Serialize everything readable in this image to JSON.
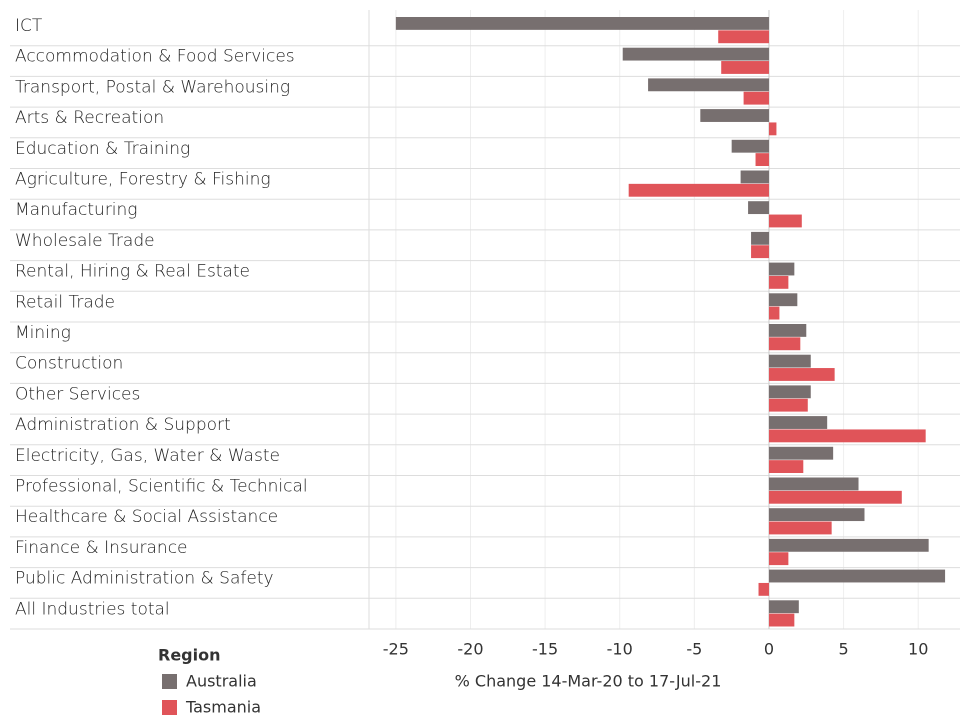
{
  "chart_data": {
    "type": "bar",
    "orientation": "horizontal",
    "x_label": "% Change 14-Mar-20 to 17-Jul-21",
    "legend_title": "Region",
    "categories": [
      "ICT",
      "Accommodation & Food Services",
      "Transport, Postal & Warehousing",
      "Arts & Recreation",
      "Education & Training",
      "Agriculture, Forestry & Fishing",
      "Manufacturing",
      "Wholesale Trade",
      "Rental, Hiring & Real Estate",
      "Retail Trade",
      "Mining",
      "Construction",
      "Other Services",
      "Administration & Support",
      "Electricity, Gas, Water & Waste",
      "Professional, Scientific & Technical",
      "Healthcare & Social Assistance",
      "Finance & Insurance",
      "Public Administration & Safety",
      "All Industries total"
    ],
    "series": [
      {
        "name": "Australia",
        "color": "#776f6f",
        "values": [
          -25.0,
          -9.8,
          -8.1,
          -4.6,
          -2.5,
          -1.9,
          -1.4,
          -1.2,
          1.7,
          1.9,
          2.5,
          2.8,
          2.8,
          3.9,
          4.3,
          6.0,
          6.4,
          10.7,
          11.8,
          2.0
        ]
      },
      {
        "name": "Tasmania",
        "color": "#e05459",
        "values": [
          -3.4,
          -3.2,
          -1.7,
          0.5,
          -0.9,
          -9.4,
          2.2,
          -1.2,
          1.3,
          0.7,
          2.1,
          4.4,
          2.6,
          10.5,
          2.3,
          8.9,
          4.2,
          1.3,
          -0.7,
          1.7
        ]
      }
    ],
    "xlim": [
      -26.8,
      12.8
    ],
    "xticks": [
      -25,
      -20,
      -15,
      -10,
      -5,
      0,
      5,
      10
    ],
    "grid": true
  }
}
